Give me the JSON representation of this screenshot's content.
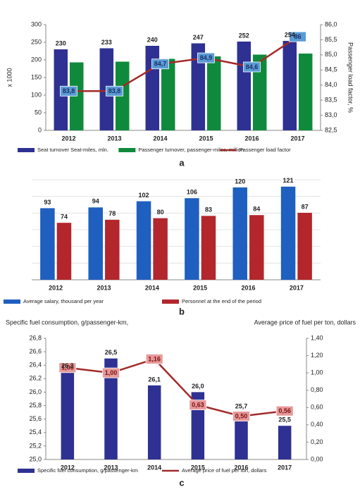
{
  "chart_data": [
    {
      "type": "bar",
      "panel_label": "a",
      "y_label": "x 1000",
      "y2_label": "Passenger load factor, %",
      "categories": [
        "2012",
        "2013",
        "2014",
        "2015",
        "2016",
        "2017"
      ],
      "ylim": [
        0,
        300
      ],
      "yticks": [
        0,
        50,
        100,
        150,
        200,
        250,
        300
      ],
      "y2lim": [
        82.5,
        86.0
      ],
      "y2ticks": [
        {
          "value": 82.5,
          "label": "82,5"
        },
        {
          "value": 83.0,
          "label": "83,0"
        },
        {
          "value": 83.5,
          "label": "83,5"
        },
        {
          "value": 84.0,
          "label": "84,0"
        },
        {
          "value": 84.5,
          "label": "84,5"
        },
        {
          "value": 85.0,
          "label": "85,0"
        },
        {
          "value": 85.5,
          "label": "85,5"
        },
        {
          "value": 86.0,
          "label": "86,0"
        }
      ],
      "series": [
        {
          "name": "Seat turnover Seat-miles, mln.",
          "color": "#2e3192",
          "values": [
            230,
            233,
            240,
            247,
            252,
            254
          ],
          "show_labels": true
        },
        {
          "name": "Passenger turnover, passenger-miles, million",
          "color": "#0f8a3c",
          "values": [
            193,
            195,
            203,
            210,
            215,
            218
          ]
        },
        {
          "name": "Passenger load factor",
          "color": "#a32a2a",
          "type": "line",
          "axis": "y2",
          "values": [
            83.8,
            83.8,
            84.7,
            84.9,
            84.6,
            85.6
          ],
          "value_labels": [
            "83,8",
            "83,8",
            "84,7",
            "84,9",
            "84,6",
            "86"
          ],
          "show_labels": true
        }
      ]
    },
    {
      "type": "bar",
      "panel_label": "b",
      "categories": [
        "2012",
        "2013",
        "2014",
        "2015",
        "2016",
        "2017"
      ],
      "ylim": [
        0,
        130
      ],
      "series": [
        {
          "name": "Average salary, thousand per year",
          "color": "#1f5fbf",
          "values": [
            93,
            94,
            102,
            106,
            120,
            121
          ],
          "show_labels": true
        },
        {
          "name": "Personnel at the end of the period",
          "color": "#b3262b",
          "values": [
            74,
            78,
            80,
            83,
            84,
            87
          ],
          "show_labels": true
        }
      ]
    },
    {
      "type": "bar",
      "panel_label": "c",
      "y_label": "Specific fuel consumption, g/passenger-km,",
      "y2_label": "Average price of fuel per ton, dollars",
      "categories": [
        "2012",
        "2013",
        "2014",
        "2015",
        "2016",
        "2017"
      ],
      "ylim": [
        25.0,
        26.8
      ],
      "yticks": [
        {
          "value": 25.0,
          "label": "25,0"
        },
        {
          "value": 25.2,
          "label": "25,2"
        },
        {
          "value": 25.4,
          "label": "25,4"
        },
        {
          "value": 25.6,
          "label": "25,6"
        },
        {
          "value": 25.8,
          "label": "25,8"
        },
        {
          "value": 26.0,
          "label": "26,0"
        },
        {
          "value": 26.2,
          "label": "26,2"
        },
        {
          "value": 26.4,
          "label": "26,4"
        },
        {
          "value": 26.6,
          "label": "26,6"
        },
        {
          "value": 26.8,
          "label": "26,8"
        }
      ],
      "y2lim": [
        0,
        1.4
      ],
      "y2ticks": [
        {
          "value": 0,
          "label": "0,00"
        },
        {
          "value": 0.2,
          "label": "0,20"
        },
        {
          "value": 0.4,
          "label": "0,40"
        },
        {
          "value": 0.6,
          "label": "0,60"
        },
        {
          "value": 0.8,
          "label": "0,80"
        },
        {
          "value": 1.0,
          "label": "1,00"
        },
        {
          "value": 1.2,
          "label": "1,20"
        },
        {
          "value": 1.4,
          "label": "1,40"
        }
      ],
      "series": [
        {
          "name": "Specific fuel consumption, g/passenger-km",
          "color": "#2e3192",
          "values": [
            26.3,
            26.5,
            26.1,
            26.0,
            25.7,
            25.5
          ],
          "value_labels": [
            "26,3",
            "26,5",
            "26,1",
            "26,0",
            "25,7",
            "25,5"
          ],
          "show_labels": true
        },
        {
          "name": "Average price of fuel per ton, dollars",
          "color": "#a32a2a",
          "type": "line",
          "axis": "y2",
          "values": [
            1.06,
            1.0,
            1.16,
            0.63,
            0.5,
            0.56
          ],
          "value_labels": [
            "1,06",
            "1,00",
            "1,16",
            "0,63",
            "0,50",
            "0,56"
          ],
          "show_labels": true
        }
      ]
    }
  ]
}
